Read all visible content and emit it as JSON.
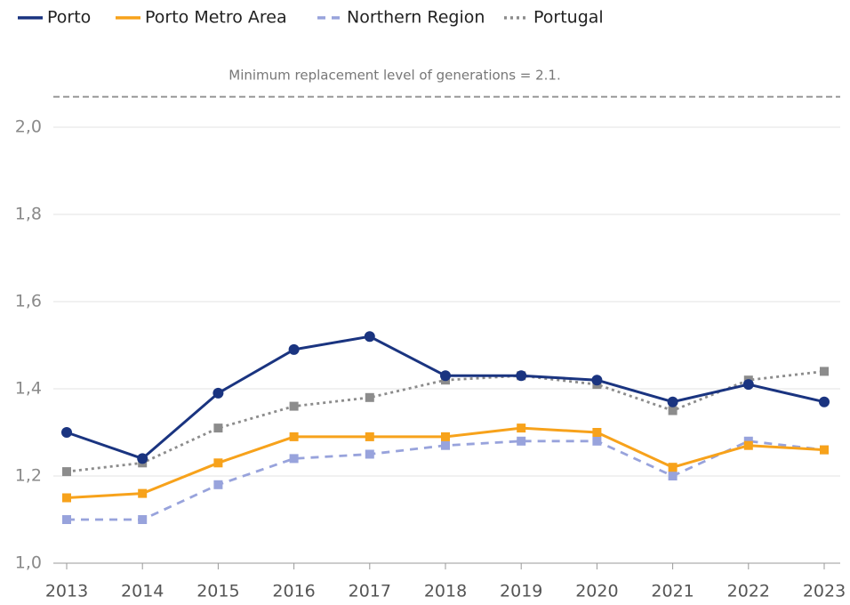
{
  "chart_data": {
    "type": "line",
    "categories": [
      "2013",
      "2014",
      "2015",
      "2016",
      "2017",
      "2018",
      "2019",
      "2020",
      "2021",
      "2022",
      "2023"
    ],
    "series": [
      {
        "name": "Porto",
        "color": "#1a3480",
        "dash": "solid",
        "marker": "circle",
        "values": [
          1.3,
          1.24,
          1.39,
          1.49,
          1.52,
          1.43,
          1.43,
          1.42,
          1.37,
          1.41,
          1.37
        ]
      },
      {
        "name": "Porto Metro Area",
        "color": "#f7a21b",
        "dash": "solid",
        "marker": "square",
        "values": [
          1.15,
          1.16,
          1.23,
          1.29,
          1.29,
          1.29,
          1.31,
          1.3,
          1.22,
          1.27,
          1.26
        ]
      },
      {
        "name": "Northern Region",
        "color": "#98a3dc",
        "dash": "dashed",
        "marker": "square",
        "values": [
          1.1,
          1.1,
          1.18,
          1.24,
          1.25,
          1.27,
          1.28,
          1.28,
          1.2,
          1.28,
          1.26
        ]
      },
      {
        "name": "Portugal",
        "color": "#8c8c8c",
        "dash": "dotted",
        "marker": "square",
        "values": [
          1.21,
          1.23,
          1.31,
          1.36,
          1.38,
          1.42,
          1.43,
          1.41,
          1.35,
          1.42,
          1.44
        ]
      }
    ],
    "reference_line": {
      "value": 2.07,
      "label": "Minimum replacement level of generations = 2.1."
    },
    "ylim": [
      1.0,
      2.1
    ],
    "yticks": [
      {
        "value": 1.0,
        "label": "1,0"
      },
      {
        "value": 1.2,
        "label": "1,2"
      },
      {
        "value": 1.4,
        "label": "1,4"
      },
      {
        "value": 1.6,
        "label": "1,6"
      },
      {
        "value": 1.8,
        "label": "1,8"
      },
      {
        "value": 2.0,
        "label": "2,0"
      }
    ],
    "grid": true,
    "legend": "top"
  }
}
